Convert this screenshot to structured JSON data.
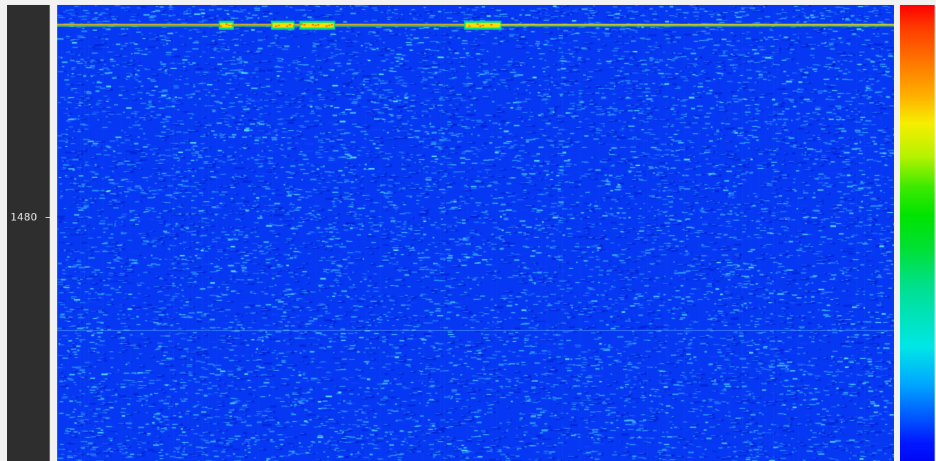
{
  "frequency_axis": {
    "tick_label": "1480",
    "axis_color": "#2e2e2e",
    "label_color": "#e8e8e8"
  },
  "waterfall": {
    "background_color": "#0637f2",
    "noise_color": "#2fa8ff",
    "signal_colors": [
      "#ff2a00",
      "#ffd000",
      "#00e070"
    ]
  },
  "colorbar": {
    "colors": [
      "#ff0000",
      "#ff7a00",
      "#f6ee00",
      "#00e400",
      "#00e6e6",
      "#005cff",
      "#0008f5"
    ]
  }
}
